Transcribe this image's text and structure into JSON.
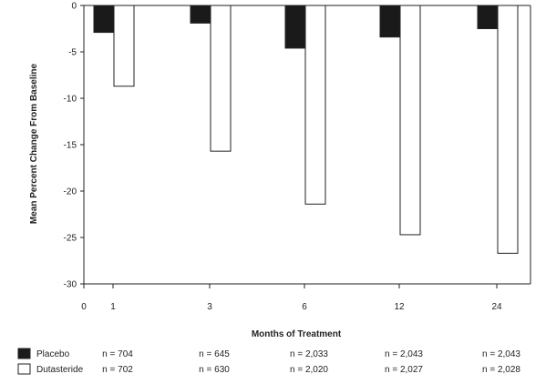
{
  "chart_data": {
    "type": "bar",
    "categories": [
      "1",
      "3",
      "6",
      "12",
      "24"
    ],
    "x_zero_label": "0",
    "series": [
      {
        "name": "Placebo",
        "color": "#1a1a1a",
        "values": [
          -2.9,
          -1.9,
          -4.6,
          -3.4,
          -2.5
        ],
        "n_values": [
          "n = 704",
          "n = 645",
          "n = 2,033",
          "n = 2,043",
          "n = 2,043"
        ]
      },
      {
        "name": "Dutasteride",
        "color": "#ffffff",
        "values": [
          -8.7,
          -15.7,
          -21.4,
          -24.7,
          -26.7
        ],
        "n_values": [
          "n = 702",
          "n = 630",
          "n = 2,020",
          "n = 2,027",
          "n = 2,028"
        ]
      }
    ],
    "title": "",
    "xlabel": "Months of Treatment",
    "ylabel": "Mean Percent Change From Baseline",
    "ylim": [
      -30,
      0
    ],
    "yticks": [
      0,
      -5,
      -10,
      -15,
      -20,
      -25,
      -30
    ],
    "grid": false,
    "legend_placement": "bottom-left"
  }
}
